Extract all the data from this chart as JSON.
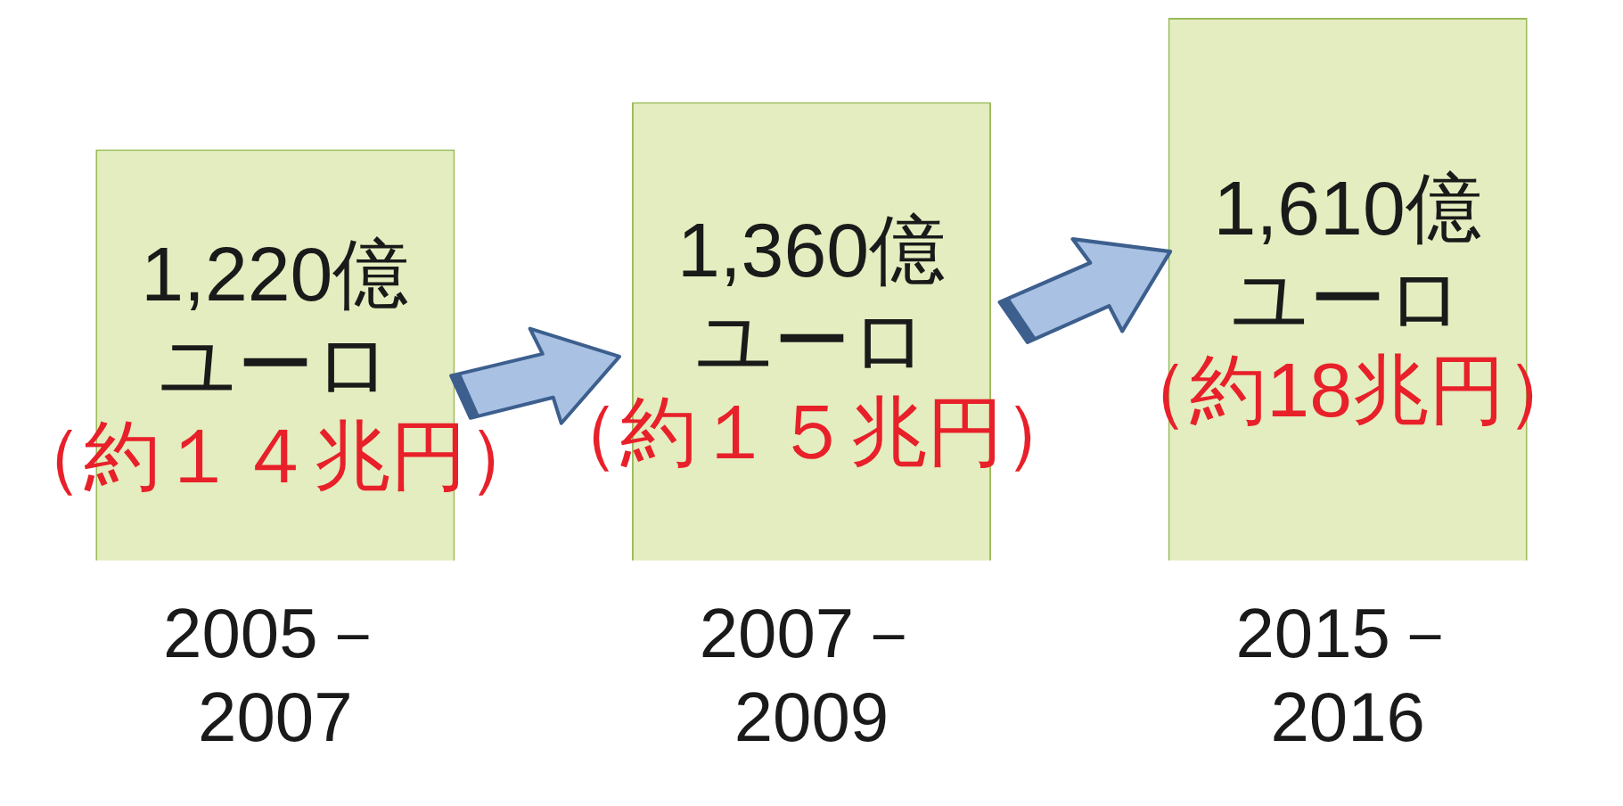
{
  "chart_data": {
    "type": "bar",
    "categories": [
      "2005－2007",
      "2007－2009",
      "2015－2016"
    ],
    "values": [
      1220,
      1360,
      1610
    ],
    "color": "#e3edbf",
    "value_labels": [
      "1,220億ユーロ",
      "1,360億ユーロ",
      "1,610億ユーロ"
    ],
    "annotations": [
      "（約１４兆円）",
      "（約１５兆円）",
      "（約18兆円）"
    ],
    "grid": false,
    "legend": false
  }
}
